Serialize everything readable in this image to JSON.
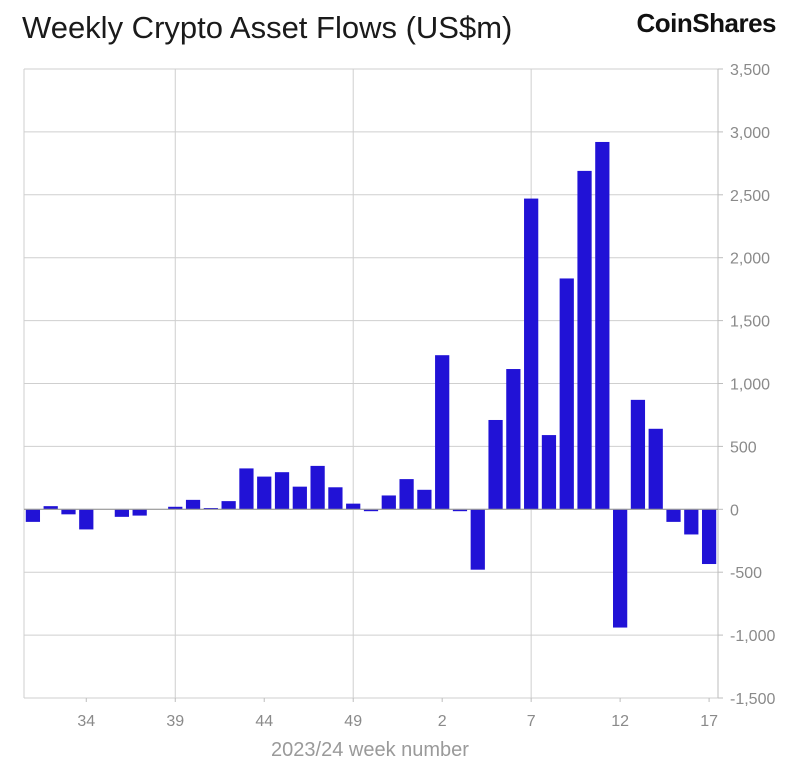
{
  "brand": {
    "logo_text": "CoinShares"
  },
  "chart_data": {
    "type": "bar",
    "title": "Weekly Crypto Asset Flows (US$m)",
    "xlabel": "2023/24 week number",
    "ylabel": "",
    "ylim": [
      -1500,
      3500
    ],
    "yticks": [
      3500,
      3000,
      2500,
      2000,
      1500,
      1000,
      500,
      0,
      -500,
      -1000,
      -1500
    ],
    "ytick_labels": [
      "3,500",
      "3,000",
      "2,500",
      "2,000",
      "1,500",
      "1,000",
      "500",
      "0",
      "-500",
      "-1,000",
      "-1,500"
    ],
    "y_axis_side": "right",
    "grid": true,
    "bar_color": "#2112d6",
    "x_tick_labels": [
      {
        "label": "34",
        "index": 3
      },
      {
        "label": "39",
        "index": 8
      },
      {
        "label": "44",
        "index": 13
      },
      {
        "label": "49",
        "index": 18
      },
      {
        "label": "2",
        "index": 23
      },
      {
        "label": "7",
        "index": 28
      },
      {
        "label": "12",
        "index": 33
      },
      {
        "label": "17",
        "index": 38
      }
    ],
    "vertical_gridline_indices": [
      8.5,
      18.5,
      28.5
    ],
    "categories": [
      "31",
      "32",
      "33",
      "34",
      "35",
      "36",
      "37",
      "38",
      "39",
      "40",
      "41",
      "42",
      "43",
      "44",
      "45",
      "46",
      "47",
      "48",
      "49",
      "50",
      "51",
      "52",
      "1",
      "2",
      "3",
      "4",
      "5",
      "6",
      "7",
      "8",
      "9",
      "10",
      "11",
      "12",
      "13",
      "14",
      "15",
      "16",
      "17"
    ],
    "values": [
      -100,
      25,
      -40,
      -160,
      0,
      -60,
      -50,
      0,
      20,
      75,
      10,
      65,
      325,
      260,
      295,
      180,
      345,
      175,
      45,
      -15,
      110,
      240,
      155,
      1225,
      -15,
      -480,
      710,
      1115,
      2470,
      590,
      1835,
      2690,
      2920,
      -940,
      870,
      640,
      -100,
      -200,
      -435
    ]
  }
}
